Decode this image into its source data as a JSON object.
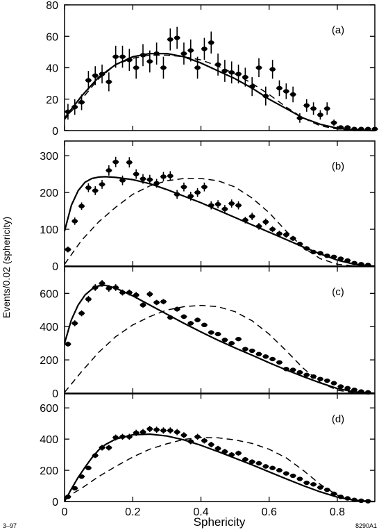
{
  "figure": {
    "xlabel": "Sphericity",
    "ylabel": "Events/0.02 (sphericity)",
    "footer_left": "3–97",
    "footer_right": "8290A1"
  },
  "chart_data": [
    {
      "type": "scatter",
      "panel_label": "(a)",
      "xlim": [
        0,
        0.91
      ],
      "ylim": [
        0,
        80
      ],
      "yticks": [
        0,
        20,
        40,
        60,
        80
      ],
      "series": [
        {
          "style": "points",
          "x": [
            0.01,
            0.03,
            0.05,
            0.07,
            0.09,
            0.11,
            0.13,
            0.15,
            0.17,
            0.19,
            0.21,
            0.23,
            0.25,
            0.27,
            0.29,
            0.31,
            0.33,
            0.35,
            0.37,
            0.39,
            0.41,
            0.43,
            0.45,
            0.47,
            0.49,
            0.51,
            0.53,
            0.55,
            0.57,
            0.59,
            0.61,
            0.63,
            0.65,
            0.67,
            0.69,
            0.71,
            0.73,
            0.75,
            0.77,
            0.79,
            0.81,
            0.83,
            0.85,
            0.87,
            0.89,
            0.91
          ],
          "y": [
            12,
            15,
            18,
            32,
            35,
            36,
            31,
            47,
            47,
            45,
            40,
            48,
            44,
            49,
            40,
            58,
            59,
            49,
            51,
            40,
            52,
            56,
            42,
            38,
            37,
            36,
            34,
            28,
            40,
            22,
            39,
            27,
            25,
            23,
            8,
            16,
            14,
            10,
            14,
            5,
            2,
            2,
            1,
            1,
            1,
            1
          ],
          "err": [
            5,
            5,
            5,
            6,
            6,
            6,
            6,
            7,
            7,
            7,
            7,
            7,
            7,
            7,
            7,
            7,
            7,
            7,
            7,
            7,
            7,
            7,
            7,
            7,
            7,
            6,
            6,
            6,
            6,
            6,
            6,
            5,
            5,
            5,
            3,
            4,
            4,
            3,
            4,
            2,
            1,
            1,
            0,
            0,
            0,
            0
          ]
        },
        {
          "style": "solid",
          "x": [
            0,
            0.05,
            0.1,
            0.15,
            0.2,
            0.25,
            0.3,
            0.35,
            0.4,
            0.45,
            0.5,
            0.55,
            0.6,
            0.65,
            0.7,
            0.75,
            0.8,
            0.85,
            0.9,
            0.91
          ],
          "y": [
            8,
            22,
            34,
            42,
            47,
            49,
            49,
            47,
            43,
            38,
            33,
            27,
            20,
            14,
            8,
            4,
            1.5,
            0.5,
            0,
            0
          ]
        },
        {
          "style": "dashed",
          "x": [
            0,
            0.05,
            0.1,
            0.15,
            0.2,
            0.25,
            0.3,
            0.35,
            0.4,
            0.45,
            0.5,
            0.55,
            0.6,
            0.65,
            0.7,
            0.75,
            0.8,
            0.85,
            0.9,
            0.91
          ],
          "y": [
            7,
            20,
            33,
            42,
            46,
            48,
            48,
            47,
            45,
            41,
            36,
            30,
            23,
            15,
            8,
            3,
            1,
            0,
            0,
            0
          ]
        }
      ]
    },
    {
      "type": "scatter",
      "panel_label": "(b)",
      "xlim": [
        0,
        0.91
      ],
      "ylim": [
        0,
        340
      ],
      "yticks": [
        0,
        100,
        200,
        300
      ],
      "series": [
        {
          "style": "points",
          "x": [
            0.01,
            0.03,
            0.05,
            0.07,
            0.09,
            0.11,
            0.13,
            0.15,
            0.17,
            0.19,
            0.21,
            0.23,
            0.25,
            0.27,
            0.29,
            0.31,
            0.33,
            0.35,
            0.37,
            0.39,
            0.41,
            0.43,
            0.45,
            0.47,
            0.49,
            0.51,
            0.53,
            0.55,
            0.57,
            0.59,
            0.61,
            0.63,
            0.65,
            0.67,
            0.69,
            0.71,
            0.73,
            0.75,
            0.77,
            0.79,
            0.81,
            0.83,
            0.85,
            0.87,
            0.89
          ],
          "y": [
            45,
            122,
            163,
            213,
            205,
            222,
            260,
            283,
            233,
            282,
            250,
            237,
            235,
            225,
            243,
            245,
            195,
            215,
            190,
            200,
            215,
            165,
            168,
            155,
            170,
            165,
            125,
            135,
            108,
            120,
            100,
            88,
            85,
            75,
            60,
            48,
            38,
            35,
            28,
            25,
            20,
            15,
            8,
            5,
            3
          ],
          "err": [
            8,
            10,
            10,
            12,
            12,
            12,
            14,
            14,
            13,
            14,
            13,
            13,
            13,
            12,
            13,
            13,
            12,
            12,
            12,
            12,
            12,
            11,
            11,
            11,
            11,
            11,
            9,
            10,
            9,
            9,
            8,
            8,
            8,
            7,
            6,
            6,
            5,
            5,
            4,
            4,
            3,
            3,
            2,
            2,
            1
          ]
        },
        {
          "style": "solid",
          "x": [
            0,
            0.02,
            0.04,
            0.06,
            0.08,
            0.1,
            0.12,
            0.15,
            0.2,
            0.25,
            0.3,
            0.35,
            0.4,
            0.45,
            0.5,
            0.55,
            0.6,
            0.65,
            0.7,
            0.75,
            0.8,
            0.85,
            0.9,
            0.91
          ],
          "y": [
            95,
            165,
            205,
            228,
            238,
            242,
            243,
            241,
            235,
            224,
            208,
            190,
            172,
            152,
            132,
            112,
            92,
            72,
            52,
            33,
            16,
            5,
            0,
            0
          ]
        },
        {
          "style": "dashed",
          "x": [
            0,
            0.05,
            0.1,
            0.15,
            0.2,
            0.25,
            0.3,
            0.35,
            0.4,
            0.45,
            0.5,
            0.55,
            0.6,
            0.65,
            0.7,
            0.75,
            0.8,
            0.85,
            0.9,
            0.91
          ],
          "y": [
            5,
            70,
            120,
            160,
            195,
            218,
            232,
            238,
            238,
            232,
            215,
            185,
            145,
            95,
            50,
            20,
            5,
            0,
            0,
            0
          ]
        }
      ]
    },
    {
      "type": "scatter",
      "panel_label": "(c)",
      "xlim": [
        0,
        0.91
      ],
      "ylim": [
        0,
        760
      ],
      "yticks": [
        0,
        200,
        400,
        600
      ],
      "series": [
        {
          "style": "points",
          "x": [
            0.01,
            0.03,
            0.05,
            0.07,
            0.09,
            0.11,
            0.13,
            0.15,
            0.17,
            0.19,
            0.21,
            0.23,
            0.25,
            0.27,
            0.29,
            0.31,
            0.33,
            0.35,
            0.37,
            0.39,
            0.41,
            0.43,
            0.45,
            0.47,
            0.49,
            0.51,
            0.53,
            0.55,
            0.57,
            0.59,
            0.61,
            0.63,
            0.65,
            0.67,
            0.69,
            0.71,
            0.73,
            0.75,
            0.77,
            0.79,
            0.81,
            0.83,
            0.85,
            0.87,
            0.89
          ],
          "y": [
            295,
            420,
            480,
            565,
            635,
            660,
            630,
            635,
            605,
            605,
            590,
            530,
            595,
            545,
            550,
            455,
            505,
            460,
            420,
            440,
            410,
            365,
            355,
            320,
            300,
            325,
            265,
            255,
            235,
            220,
            205,
            185,
            145,
            140,
            125,
            110,
            100,
            85,
            75,
            60,
            40,
            30,
            20,
            10,
            5
          ],
          "err": [
            15,
            18,
            18,
            20,
            20,
            20,
            20,
            20,
            18,
            18,
            18,
            16,
            18,
            16,
            16,
            14,
            15,
            14,
            14,
            14,
            13,
            12,
            12,
            11,
            11,
            11,
            10,
            10,
            9,
            9,
            9,
            8,
            7,
            7,
            7,
            6,
            6,
            5,
            5,
            5,
            4,
            3,
            3,
            2,
            1
          ]
        },
        {
          "style": "solid",
          "x": [
            0,
            0.02,
            0.04,
            0.06,
            0.08,
            0.1,
            0.12,
            0.15,
            0.2,
            0.25,
            0.3,
            0.35,
            0.4,
            0.45,
            0.5,
            0.55,
            0.6,
            0.65,
            0.7,
            0.75,
            0.8,
            0.85,
            0.9,
            0.91
          ],
          "y": [
            300,
            440,
            530,
            590,
            625,
            645,
            648,
            632,
            585,
            530,
            475,
            420,
            368,
            318,
            272,
            228,
            183,
            140,
            100,
            62,
            28,
            8,
            0,
            0
          ]
        },
        {
          "style": "dashed",
          "x": [
            0,
            0.05,
            0.1,
            0.15,
            0.2,
            0.25,
            0.3,
            0.35,
            0.4,
            0.45,
            0.5,
            0.55,
            0.6,
            0.65,
            0.7,
            0.75,
            0.8,
            0.85,
            0.9,
            0.91
          ],
          "y": [
            5,
            130,
            245,
            340,
            410,
            460,
            500,
            520,
            528,
            520,
            490,
            435,
            355,
            255,
            150,
            65,
            18,
            2,
            0,
            0
          ]
        }
      ]
    },
    {
      "type": "scatter",
      "panel_label": "(d)",
      "xlim": [
        0,
        0.91
      ],
      "ylim": [
        0,
        690
      ],
      "yticks": [
        0,
        200,
        400,
        600
      ],
      "series": [
        {
          "style": "points",
          "x": [
            0.01,
            0.03,
            0.05,
            0.07,
            0.09,
            0.11,
            0.13,
            0.15,
            0.17,
            0.19,
            0.21,
            0.23,
            0.25,
            0.27,
            0.29,
            0.31,
            0.33,
            0.35,
            0.37,
            0.39,
            0.41,
            0.43,
            0.45,
            0.47,
            0.49,
            0.51,
            0.53,
            0.55,
            0.57,
            0.59,
            0.61,
            0.63,
            0.65,
            0.67,
            0.69,
            0.71,
            0.73,
            0.75,
            0.77,
            0.79,
            0.81,
            0.83,
            0.85,
            0.87,
            0.89
          ],
          "y": [
            30,
            85,
            160,
            215,
            295,
            345,
            345,
            410,
            415,
            415,
            440,
            445,
            465,
            460,
            455,
            455,
            445,
            425,
            385,
            415,
            390,
            365,
            340,
            320,
            300,
            310,
            270,
            255,
            245,
            225,
            215,
            200,
            180,
            165,
            145,
            120,
            110,
            90,
            75,
            50,
            30,
            20,
            10,
            5,
            2
          ],
          "err": [
            8,
            10,
            12,
            14,
            16,
            18,
            18,
            19,
            19,
            19,
            20,
            20,
            20,
            20,
            20,
            20,
            20,
            19,
            18,
            19,
            18,
            18,
            17,
            17,
            16,
            16,
            15,
            15,
            14,
            14,
            14,
            13,
            12,
            12,
            11,
            10,
            10,
            9,
            8,
            7,
            5,
            4,
            3,
            2,
            1
          ]
        },
        {
          "style": "solid",
          "x": [
            0,
            0.02,
            0.04,
            0.06,
            0.08,
            0.1,
            0.12,
            0.15,
            0.2,
            0.25,
            0.3,
            0.35,
            0.4,
            0.45,
            0.5,
            0.55,
            0.6,
            0.65,
            0.7,
            0.75,
            0.8,
            0.85,
            0.9,
            0.91
          ],
          "y": [
            0,
            80,
            155,
            220,
            280,
            330,
            365,
            400,
            428,
            432,
            420,
            395,
            360,
            320,
            278,
            235,
            190,
            145,
            102,
            62,
            28,
            8,
            0,
            0
          ]
        },
        {
          "style": "dashed",
          "x": [
            0,
            0.05,
            0.1,
            0.15,
            0.2,
            0.25,
            0.3,
            0.35,
            0.4,
            0.45,
            0.5,
            0.55,
            0.6,
            0.65,
            0.7,
            0.75,
            0.8,
            0.85,
            0.9,
            0.91
          ],
          "y": [
            20,
            85,
            160,
            225,
            285,
            335,
            370,
            398,
            410,
            408,
            395,
            372,
            335,
            280,
            200,
            110,
            40,
            8,
            0,
            0
          ]
        }
      ]
    }
  ]
}
